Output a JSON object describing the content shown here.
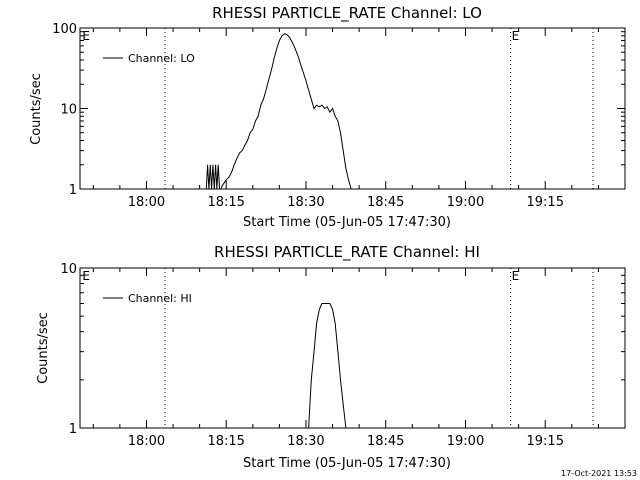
{
  "chart_data": [
    {
      "type": "line",
      "title": "RHESSI PARTICLE_RATE Channel: LO",
      "xlabel": "Start Time (05-Jun-05 17:47:30)",
      "ylabel": "Counts/sec",
      "yscale": "log",
      "ylim": [
        1,
        100
      ],
      "xlim": [
        "17:47:30",
        "19:30:00"
      ],
      "x_unit": "time of day (05-Jun-05)",
      "x_ticks": [
        "18:00",
        "18:15",
        "18:30",
        "18:45",
        "19:00",
        "19:15"
      ],
      "y_ticks": [
        "1",
        "10",
        "100"
      ],
      "legend": "top-left",
      "grid": false,
      "series": [
        {
          "name": "Channel: LO",
          "x": [
            "18:11:15",
            "18:11:30",
            "18:11:45",
            "18:12:00",
            "18:12:15",
            "18:12:30",
            "18:12:45",
            "18:13:00",
            "18:13:15",
            "18:13:30",
            "18:13:45",
            "18:14:00",
            "18:14:15",
            "18:15:00",
            "18:15:30",
            "18:16:00",
            "18:16:30",
            "18:17:00",
            "18:17:30",
            "18:18:00",
            "18:18:30",
            "18:19:00",
            "18:19:30",
            "18:20:00",
            "18:20:30",
            "18:21:00",
            "18:21:30",
            "18:22:00",
            "18:22:30",
            "18:23:00",
            "18:23:30",
            "18:24:00",
            "18:24:30",
            "18:25:00",
            "18:25:30",
            "18:26:00",
            "18:26:30",
            "18:27:00",
            "18:27:30",
            "18:28:00",
            "18:28:30",
            "18:29:00",
            "18:29:30",
            "18:30:00",
            "18:30:30",
            "18:31:00",
            "18:31:30",
            "18:32:00",
            "18:32:30",
            "18:33:00",
            "18:33:30",
            "18:34:00",
            "18:34:30",
            "18:35:00",
            "18:35:30",
            "18:36:00",
            "18:36:30",
            "18:37:00",
            "18:37:30",
            "18:38:00",
            "18:38:30"
          ],
          "y": [
            1,
            2,
            1,
            2,
            1,
            2,
            1,
            2,
            1,
            2,
            1,
            1,
            1.1,
            1.3,
            1.4,
            1.6,
            2,
            2.4,
            2.8,
            3,
            3.5,
            4,
            5,
            5.5,
            7,
            8,
            11,
            13,
            17,
            23,
            30,
            42,
            55,
            70,
            80,
            85,
            82,
            75,
            65,
            55,
            45,
            35,
            28,
            22,
            17,
            13,
            10,
            11,
            10.5,
            11,
            10,
            10.5,
            9,
            10,
            8,
            7,
            5,
            3,
            1.8,
            1.3,
            1
          ]
        }
      ],
      "annotations": [
        {
          "text": "E",
          "x": "17:47:45"
        },
        {
          "text": "E",
          "x": "19:08:30"
        }
      ],
      "vertical_dotted_lines": [
        "18:03:30",
        "19:08:30",
        "19:24:00"
      ]
    },
    {
      "type": "line",
      "title": "RHESSI PARTICLE_RATE Channel: HI",
      "xlabel": "Start Time (05-Jun-05 17:47:30)",
      "ylabel": "Counts/sec",
      "yscale": "log",
      "ylim": [
        1,
        10
      ],
      "xlim": [
        "17:47:30",
        "19:30:00"
      ],
      "x_unit": "time of day (05-Jun-05)",
      "x_ticks": [
        "18:00",
        "18:15",
        "18:30",
        "18:45",
        "19:00",
        "19:15"
      ],
      "y_ticks": [
        "1",
        "10"
      ],
      "legend": "top-left",
      "grid": false,
      "series": [
        {
          "name": "Channel: HI",
          "x": [
            "18:30:30",
            "18:31:00",
            "18:31:30",
            "18:32:00",
            "18:32:30",
            "18:33:00",
            "18:33:30",
            "18:34:00",
            "18:34:30",
            "18:35:00",
            "18:35:30",
            "18:36:00",
            "18:36:30",
            "18:37:00",
            "18:37:30"
          ],
          "y": [
            1,
            2,
            3,
            4.5,
            5.5,
            6,
            6,
            6,
            6,
            5.5,
            4.5,
            3,
            2,
            1.4,
            1
          ]
        }
      ],
      "annotations": [
        {
          "text": "E",
          "x": "17:47:45"
        },
        {
          "text": "E",
          "x": "19:08:30"
        }
      ],
      "vertical_dotted_lines": [
        "18:03:30",
        "19:08:30",
        "19:24:00"
      ]
    }
  ],
  "footer": {
    "timestamp": "17-Oct-2021 13:53"
  }
}
